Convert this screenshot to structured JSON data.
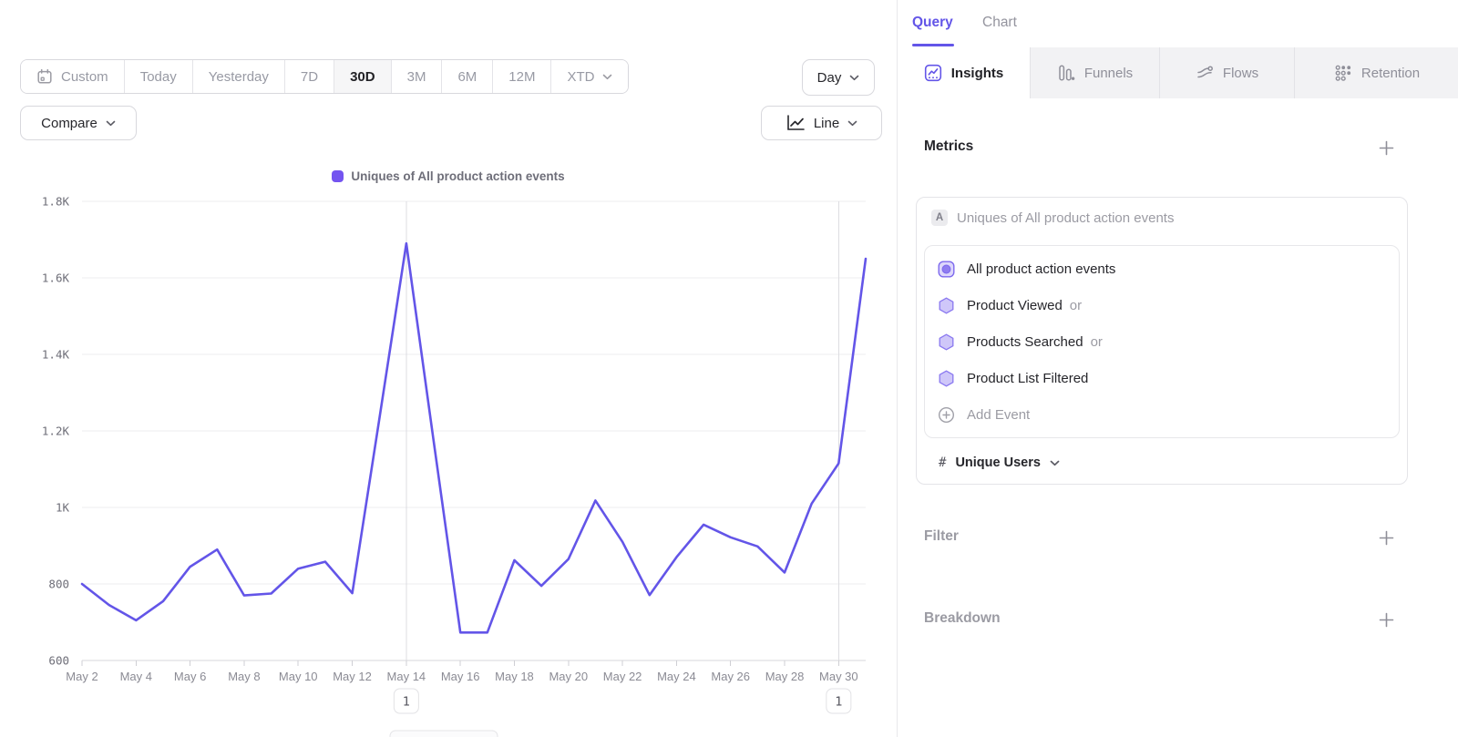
{
  "accent": "#6355e8",
  "toolbar": {
    "date_ranges": [
      "Custom",
      "Today",
      "Yesterday",
      "7D",
      "30D",
      "3M",
      "6M",
      "12M",
      "XTD"
    ],
    "selected_range": "30D",
    "granularity": "Day",
    "compare_label": "Compare",
    "chart_type": "Line"
  },
  "chart_data": {
    "type": "line",
    "title": "Uniques of All product action events",
    "categories": [
      "May 2",
      "May 3",
      "May 4",
      "May 5",
      "May 6",
      "May 7",
      "May 8",
      "May 9",
      "May 10",
      "May 11",
      "May 12",
      "May 13",
      "May 14",
      "May 15",
      "May 16",
      "May 17",
      "May 18",
      "May 19",
      "May 20",
      "May 21",
      "May 22",
      "May 23",
      "May 24",
      "May 25",
      "May 26",
      "May 27",
      "May 28",
      "May 29",
      "May 30",
      "May 31"
    ],
    "values": [
      800,
      745,
      705,
      755,
      845,
      890,
      770,
      775,
      840,
      858,
      776,
      1230,
      1690,
      1180,
      673,
      673,
      862,
      795,
      865,
      1018,
      910,
      771,
      870,
      955,
      922,
      898,
      830,
      1010,
      1115,
      1650
    ],
    "ylim": [
      600,
      1800
    ],
    "y_ticks": [
      {
        "value": 600,
        "label": "600"
      },
      {
        "value": 800,
        "label": "800"
      },
      {
        "value": 1000,
        "label": "1K"
      },
      {
        "value": 1200,
        "label": "1.2K"
      },
      {
        "value": 1400,
        "label": "1.4K"
      },
      {
        "value": 1600,
        "label": "1.6K"
      },
      {
        "value": 1800,
        "label": "1.8K"
      }
    ],
    "x_label_every": 2,
    "grid": "horizontal",
    "legend_position": "top-center",
    "line_color": "#6355e8",
    "legend_swatch_color": "#7454f0",
    "annotations": [
      {
        "x_index": 12,
        "x": "May 14",
        "label": "1"
      },
      {
        "x_index": 28,
        "x": "May 30",
        "label": "1"
      }
    ]
  },
  "query_panel": {
    "tabs": {
      "query": "Query",
      "chart": "Chart",
      "active": "Query"
    },
    "report_tabs": {
      "insights": "Insights",
      "funnels": "Funnels",
      "flows": "Flows",
      "retention": "Retention",
      "active": "Insights"
    },
    "metrics": {
      "heading": "Metrics",
      "series_letter": "A",
      "series_label": "Uniques of All product action events",
      "events": [
        {
          "name": "All product action events"
        },
        {
          "name": "Product Viewed",
          "suffix": "or"
        },
        {
          "name": "Products Searched",
          "suffix": "or"
        },
        {
          "name": "Product List Filtered"
        }
      ],
      "add_event_label": "Add Event",
      "aggregation": {
        "symbol": "#",
        "label": "Unique Users"
      }
    },
    "filter": {
      "heading": "Filter"
    },
    "breakdown": {
      "heading": "Breakdown"
    }
  }
}
